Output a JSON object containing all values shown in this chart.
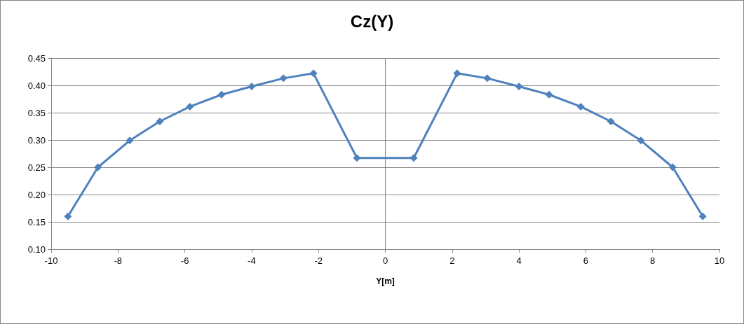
{
  "chart_data": {
    "type": "line",
    "title": "Cz(Y)",
    "xlabel": "Y[m]",
    "x": [
      -9.5,
      -8.6,
      -7.65,
      -6.75,
      -5.85,
      -4.9,
      -4.0,
      -3.05,
      -2.15,
      -0.85,
      0.85,
      2.15,
      3.05,
      4.0,
      4.9,
      5.85,
      6.75,
      7.65,
      8.6,
      9.5
    ],
    "series": [
      {
        "color": "#4f81bd",
        "values": [
          0.16,
          0.25,
          0.299,
          0.334,
          0.361,
          0.383,
          0.398,
          0.413,
          0.422,
          0.267,
          0.267,
          0.422,
          0.413,
          0.398,
          0.383,
          0.361,
          0.334,
          0.299,
          0.25,
          0.16
        ]
      }
    ],
    "xlim": [
      -10,
      10
    ],
    "xticks": [
      -10,
      -8,
      -6,
      -4,
      -2,
      0,
      2,
      4,
      6,
      8,
      10
    ],
    "ylim": [
      0.1,
      0.45
    ],
    "yticks": [
      {
        "value": 0.1,
        "label": "0.10"
      },
      0.15,
      {
        "value": 0.2,
        "label": "0.20"
      },
      0.25,
      {
        "value": 0.3,
        "label": "0.30"
      },
      0.35,
      {
        "value": 0.4,
        "label": "0.40"
      },
      0.45
    ],
    "ref_lines": [
      {
        "axis": "x",
        "value": 0,
        "color": "#868686"
      }
    ],
    "grid": "y",
    "marker": "diamond",
    "line_style": "solid"
  }
}
